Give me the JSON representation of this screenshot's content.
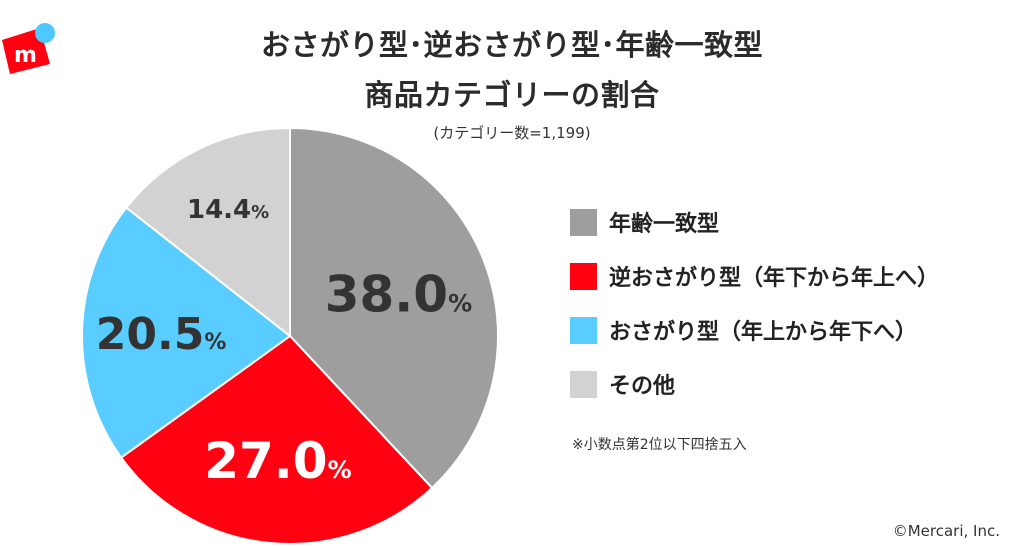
{
  "title_line1": "おさがり型･逆おさがり型･年齢一致型",
  "title_line2": "商品カテゴリーの割合",
  "subtitle": "(カテゴリー数=1,199)",
  "note": "※小数点第2位以下四捨五入",
  "copyright": "©Mercari, Inc.",
  "logo": {
    "letter": "m",
    "icon": "mercari-logo-icon",
    "box_color": "#ff0211",
    "dot_color": "#4dc9ff"
  },
  "chart_data": {
    "type": "pie",
    "start": "12 o'clock",
    "direction": "clockwise",
    "unit": "%",
    "slices": [
      {
        "name": "年齢一致型",
        "value": 38.0,
        "label": "38.0",
        "color": "#9e9e9e",
        "label_color": "#333333"
      },
      {
        "name": "逆おさがり型（年下から年上へ）",
        "value": 27.0,
        "label": "27.0",
        "color": "#ff0211",
        "label_color": "#ffffff"
      },
      {
        "name": "おさがり型（年上から年下へ）",
        "value": 20.5,
        "label": "20.5",
        "color": "#59cdff",
        "label_color": "#333333"
      },
      {
        "name": "その他",
        "value": 14.4,
        "label": "14.4",
        "color": "#d2d2d2",
        "label_color": "#333333"
      }
    ],
    "legend_placement": "right"
  }
}
